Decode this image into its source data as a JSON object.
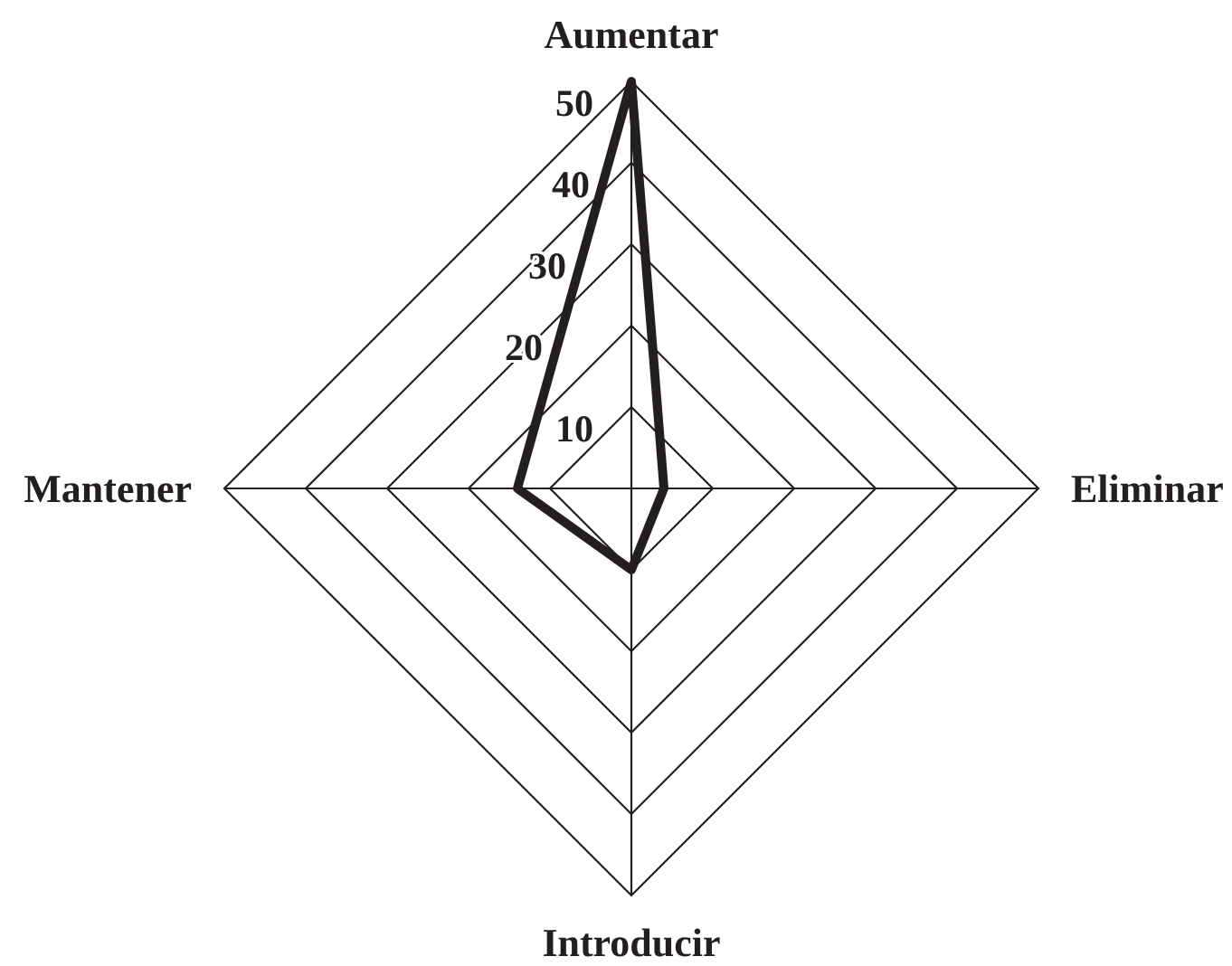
{
  "chart_data": {
    "type": "radar",
    "categories": [
      "Aumentar",
      "Eliminar",
      "Introducir",
      "Mantener"
    ],
    "series": [
      {
        "color": "#231f20",
        "values": [
          50,
          4,
          10,
          14
        ]
      }
    ],
    "ylim": [
      0,
      50
    ],
    "yticks": [
      10,
      20,
      30,
      40,
      50
    ],
    "grid": true
  }
}
